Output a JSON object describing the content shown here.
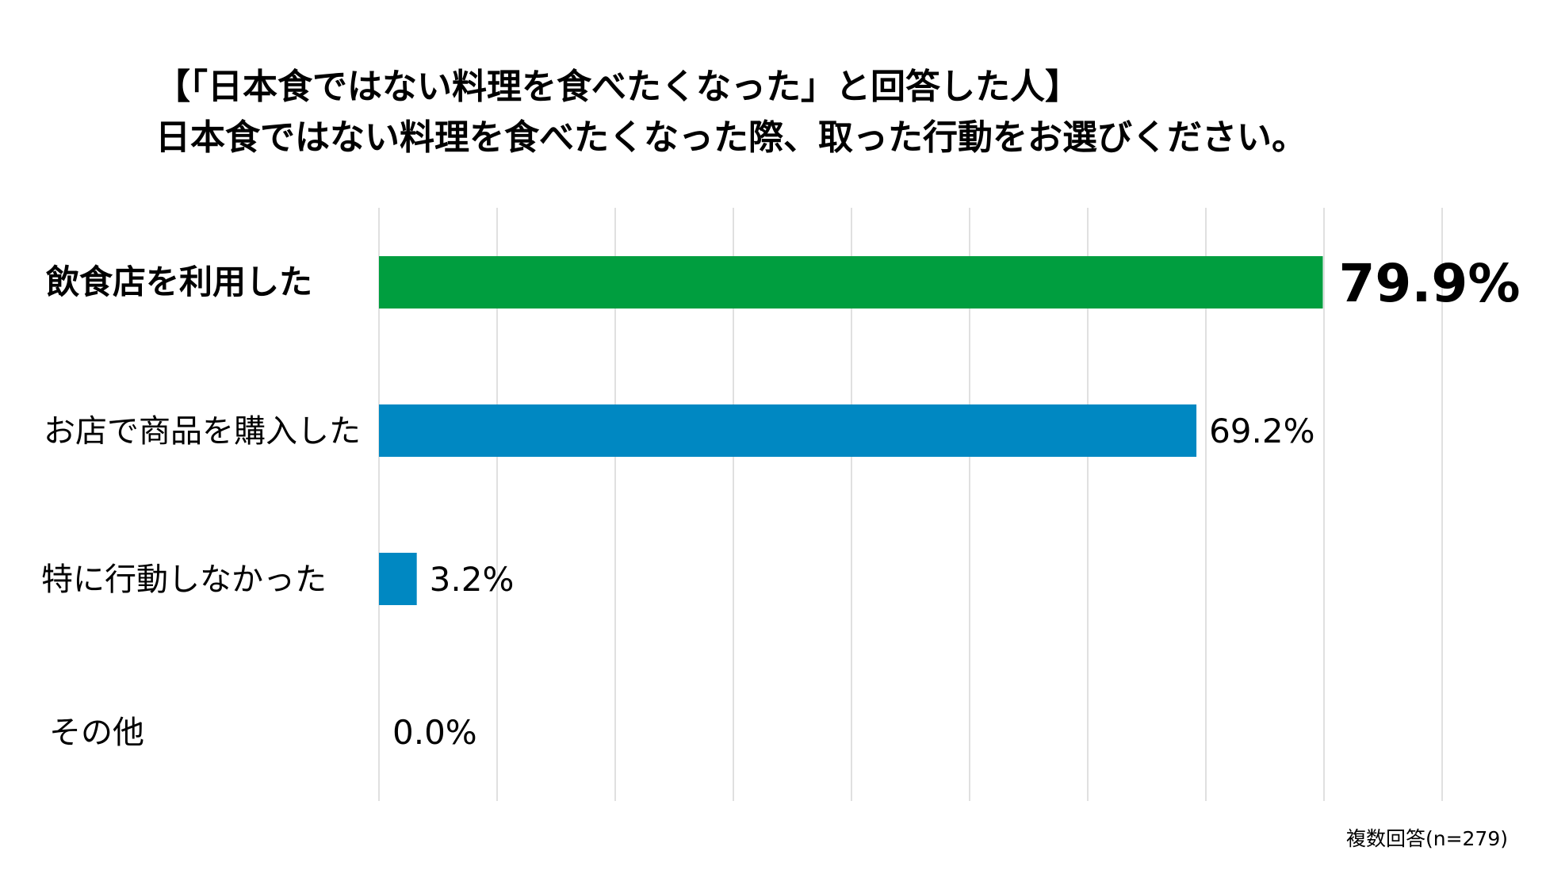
{
  "title": {
    "line1": "【「日本食ではない料理を食べたくなった」と回答した人】",
    "line2": "日本食ではない料理を食べたくなった際、取った行動をお選びください。"
  },
  "chart_data": {
    "type": "bar",
    "orientation": "horizontal",
    "categories": [
      "飲食店を利用した",
      "お店で商品を購入した",
      "特に行動しなかった",
      "その他"
    ],
    "values": [
      79.9,
      69.2,
      3.2,
      0.0
    ],
    "value_labels": [
      "79.9%",
      "69.2%",
      "3.2%",
      "0.0%"
    ],
    "highlight_index": 0,
    "colors": {
      "highlight": "#009E3F",
      "default": "#0088C2",
      "grid": "#D9D9D9"
    },
    "xlim": [
      0,
      90
    ],
    "grid_step": 10,
    "grid": true,
    "legend": "none"
  },
  "footnote": "複数回答(n=279)"
}
